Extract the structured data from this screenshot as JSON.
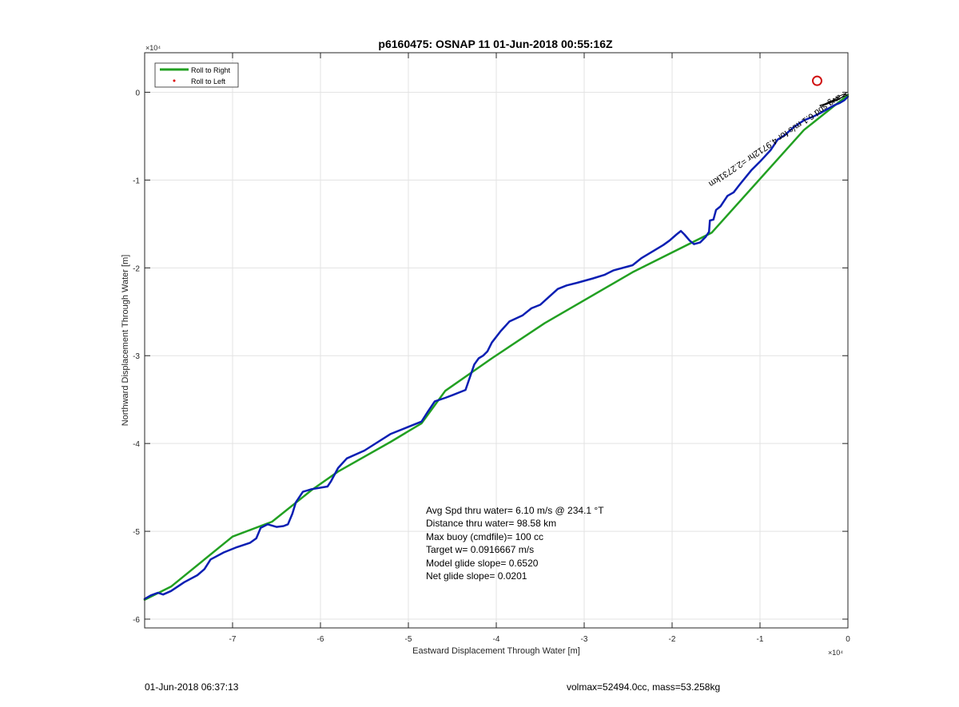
{
  "chart_data": {
    "type": "line",
    "title": "p6160475: OSNAP 11 01-Jun-2018 00:55:16Z",
    "xlabel": "Eastward Displacement Through Water [m]",
    "ylabel": "Northward Displacement Through Water [m]",
    "x_exponent_label": "×10⁴",
    "y_exponent_label": "×10⁴",
    "xlim": [
      -80000,
      0
    ],
    "ylim": [
      -61000,
      4500
    ],
    "x_ticks": [
      -70000,
      -60000,
      -50000,
      -40000,
      -30000,
      -20000,
      -10000,
      0
    ],
    "x_tick_labels": [
      "-7",
      "-6",
      "-5",
      "-4",
      "-3",
      "-2",
      "-1",
      "0"
    ],
    "y_ticks": [
      0,
      -10000,
      -20000,
      -30000,
      -40000,
      -50000,
      -60000
    ],
    "y_tick_labels": [
      "0",
      "-1",
      "-2",
      "-3",
      "-4",
      "-5",
      "-6"
    ],
    "grid": true,
    "legend_placement": "top-left",
    "legend": [
      {
        "label": "Roll to Right",
        "color": "#22a022",
        "marker": "line"
      },
      {
        "label": "Roll to Left",
        "color": "#dd0000",
        "marker": "dot"
      }
    ],
    "series": [
      {
        "color": "#22a022",
        "x": [
          -80000,
          -77000,
          -70000,
          -65500,
          -61000,
          -58000,
          -52000,
          -48500,
          -45800,
          -40500,
          -34500,
          -24500,
          -15500,
          -5000,
          0
        ],
        "y": [
          -57800,
          -56300,
          -50600,
          -48900,
          -45300,
          -43200,
          -39800,
          -37700,
          -34000,
          -30300,
          -26300,
          -20500,
          -16000,
          -4300,
          -300
        ]
      },
      {
        "color": "#0a1fb3",
        "x": [
          -80000,
          -79300,
          -78500,
          -77900,
          -77000,
          -75500,
          -74000,
          -73200,
          -72500,
          -71000,
          -69500,
          -68000,
          -67300,
          -66800,
          -66000,
          -65000,
          -64200,
          -63700,
          -63200,
          -62800,
          -62000,
          -61000,
          -59200,
          -58800,
          -58000,
          -57000,
          -55000,
          -52000,
          -48500,
          -47800,
          -47000,
          -45800,
          -45000,
          -43500,
          -42500,
          -42000,
          -41500,
          -41000,
          -40500,
          -39500,
          -38500,
          -37000,
          -36000,
          -35000,
          -34000,
          -33000,
          -32000,
          -30800,
          -29000,
          -27700,
          -26700,
          -24500,
          -24000,
          -23500,
          -22000,
          -21000,
          -20300,
          -19500,
          -19000,
          -18600,
          -18000,
          -17500,
          -16800,
          -16200,
          -15800,
          -15700,
          -15300,
          -15000,
          -14500,
          -13700,
          -13000,
          -12300,
          -11000,
          -10000,
          -8800,
          -8000,
          -7200,
          -6200,
          -5000,
          -4000,
          -3000,
          -2300,
          -1600,
          -900,
          -400,
          0
        ],
        "y": [
          -57700,
          -57300,
          -57000,
          -57200,
          -56800,
          -55800,
          -55000,
          -54300,
          -53200,
          -52400,
          -51800,
          -51300,
          -50800,
          -49600,
          -49200,
          -49500,
          -49400,
          -49200,
          -48000,
          -46700,
          -45500,
          -45200,
          -44900,
          -44300,
          -42800,
          -41700,
          -40800,
          -38900,
          -37500,
          -36400,
          -35200,
          -34800,
          -34500,
          -33900,
          -31000,
          -30300,
          -30000,
          -29500,
          -28500,
          -27200,
          -26100,
          -25400,
          -24600,
          -24200,
          -23300,
          -22400,
          -22000,
          -21700,
          -21200,
          -20800,
          -20300,
          -19700,
          -19300,
          -18900,
          -18000,
          -17400,
          -16900,
          -16200,
          -15800,
          -16200,
          -16900,
          -17300,
          -17100,
          -16500,
          -15900,
          -14600,
          -14500,
          -13400,
          -13000,
          -11800,
          -11400,
          -10500,
          -8900,
          -7900,
          -6600,
          -5400,
          -4900,
          -4000,
          -3200,
          -2800,
          -2300,
          -1900,
          -1500,
          -1200,
          -900,
          -500
        ]
      },
      {
        "color": "#000000",
        "x": [
          -3000,
          -2000,
          -1200,
          -600,
          -200,
          -900,
          -1700,
          -2600,
          -3200,
          -2400,
          -1500,
          -700,
          -100,
          -500
        ],
        "y": [
          -1600,
          -1200,
          -900,
          -500,
          -100,
          -400,
          -900,
          -1300,
          -1500,
          -1300,
          -900,
          -600,
          -300,
          -200
        ]
      }
    ],
    "markers": [
      {
        "shape": "circle",
        "color": "#d01010",
        "x": -3500,
        "y": 1300
      }
    ],
    "rotated_annotation": "avg spd 6.1 m/s for 4.9712hr =2.2731km",
    "stats": [
      "Avg Spd thru water=  6.10 m/s @ 234.1 °T",
      "Distance thru water= 98.58 km",
      "Max buoy (cmdfile)= 100 cc",
      "Target w= 0.0916667 m/s",
      "Model glide slope= 0.6520",
      "Net glide slope= 0.0201"
    ]
  },
  "footer": {
    "timestamp": "01-Jun-2018 06:37:13",
    "summary": "volmax=52494.0cc, mass=53.258kg"
  }
}
